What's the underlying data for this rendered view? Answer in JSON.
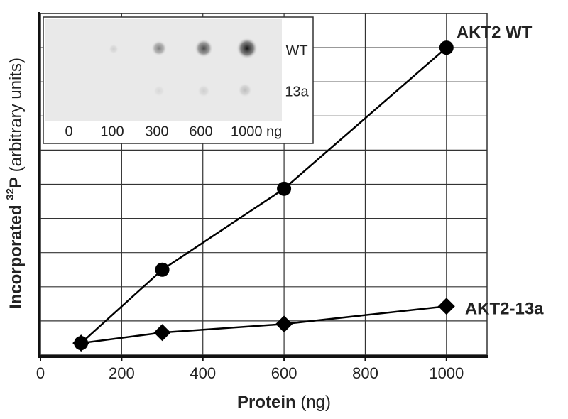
{
  "chart_data": {
    "type": "line",
    "x_label": {
      "bold": "Protein",
      "normal": "(ng)"
    },
    "y_label": {
      "bold": "Incorporated ",
      "sup": "32",
      "bold2": "P",
      "normal": " (arbitrary units)"
    },
    "x": [
      100,
      300,
      600,
      1000
    ],
    "series": [
      {
        "name": "AKT2 WT",
        "color": "#000000",
        "marker": "circle",
        "values": [
          0.35,
          2.5,
          4.87,
          9.0
        ]
      },
      {
        "name": "AKT2-13a",
        "color": "#000000",
        "marker": "diamond",
        "values": [
          0.35,
          0.66,
          0.91,
          1.43
        ]
      }
    ],
    "xlim": [
      0,
      1100
    ],
    "xticks": [
      0,
      200,
      400,
      600,
      800,
      1000
    ],
    "ylim": [
      0,
      10
    ],
    "yticks": [
      1,
      2,
      3,
      4,
      5,
      6,
      7,
      8,
      9,
      10
    ],
    "ytick_labels": false,
    "grid": true,
    "inset": {
      "rows": [
        "WT",
        "13a"
      ],
      "lanes": [
        "0",
        "100",
        "300",
        "600",
        "1000 ng"
      ]
    }
  }
}
